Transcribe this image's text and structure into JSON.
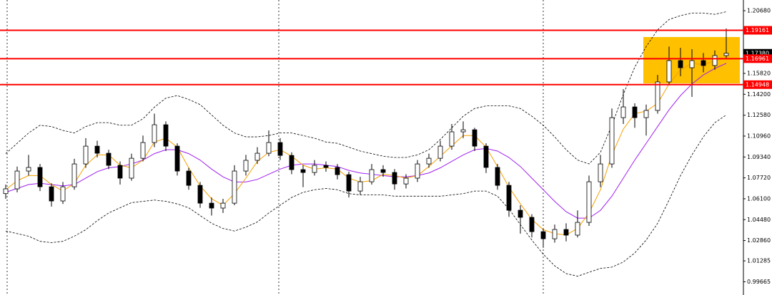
{
  "chart_data": {
    "type": "candlestick",
    "ylim": [
      0.9864,
      1.2151
    ],
    "yticks": [
      {
        "value": 1.2068,
        "label": "1.20680"
      },
      {
        "value": 1.1582,
        "label": "1.15820"
      },
      {
        "value": 1.142,
        "label": "1.14200"
      },
      {
        "value": 1.1258,
        "label": "1.12580"
      },
      {
        "value": 1.1096,
        "label": "1.10960"
      },
      {
        "value": 1.0934,
        "label": "1.09340"
      },
      {
        "value": 1.0772,
        "label": "1.07720"
      },
      {
        "value": 1.061,
        "label": "1.06100"
      },
      {
        "value": 1.0448,
        "label": "1.04480"
      },
      {
        "value": 1.0286,
        "label": "1.02860"
      },
      1.01285,
      0.99665
    ],
    "open": [
      1.065,
      1.0687,
      1.0825,
      1.0853,
      1.0703,
      1.0593,
      1.0703,
      1.088,
      1.1018,
      1.0963,
      1.0869,
      1.077,
      1.0924,
      1.1046,
      1.1184,
      1.1018,
      1.0825,
      1.0714,
      1.0576,
      1.0538,
      1.0576,
      1.0825,
      1.0908,
      1.0963,
      1.1046,
      1.0946,
      1.0836,
      1.0814,
      1.0869,
      1.0853,
      1.0797,
      1.067,
      1.0742,
      1.0836,
      1.0814,
      1.0725,
      1.077,
      1.088,
      1.0924,
      1.1018,
      1.1129,
      1.1145,
      1.1018,
      1.0853,
      1.0714,
      1.0521,
      1.0466,
      1.0355,
      1.03,
      1.0372,
      1.0328,
      1.0427,
      1.0742,
      1.088,
      1.1239,
      1.1322,
      1.1239,
      1.1295,
      1.1516,
      1.1681,
      1.1626,
      1.1681,
      1.1643,
      1.172
    ],
    "high": [
      1.072,
      1.086,
      1.095,
      1.088,
      1.073,
      1.074,
      1.092,
      1.108,
      1.106,
      1.099,
      1.09,
      1.096,
      1.11,
      1.127,
      1.121,
      1.104,
      1.085,
      1.074,
      1.062,
      1.061,
      1.087,
      1.095,
      1.101,
      1.114,
      1.108,
      1.097,
      1.087,
      1.091,
      1.09,
      1.088,
      1.082,
      1.078,
      1.088,
      1.087,
      1.084,
      1.08,
      1.091,
      1.096,
      1.106,
      1.119,
      1.121,
      1.116,
      1.104,
      1.088,
      1.074,
      1.056,
      1.049,
      1.038,
      1.041,
      1.042,
      1.052,
      1.079,
      1.095,
      1.131,
      1.146,
      1.135,
      1.134,
      1.157,
      1.179,
      1.178,
      1.177,
      1.174,
      1.176,
      1.193
    ],
    "low": [
      1.061,
      1.066,
      1.079,
      1.067,
      1.055,
      1.057,
      1.068,
      1.085,
      1.093,
      1.084,
      1.072,
      1.075,
      1.09,
      1.101,
      1.098,
      1.079,
      1.068,
      1.054,
      1.048,
      1.05,
      1.056,
      1.079,
      1.088,
      1.094,
      1.091,
      1.08,
      1.07,
      1.079,
      1.082,
      1.076,
      1.062,
      1.064,
      1.072,
      1.078,
      1.068,
      1.069,
      1.074,
      1.085,
      1.09,
      1.099,
      1.108,
      1.098,
      1.081,
      1.068,
      1.047,
      1.034,
      1.031,
      1.023,
      1.027,
      1.028,
      1.031,
      1.04,
      1.07,
      1.085,
      1.119,
      1.116,
      1.11,
      1.127,
      1.149,
      1.156,
      1.14,
      1.159,
      1.161,
      1.17
    ],
    "close": [
      1.0687,
      1.0825,
      1.0853,
      1.0703,
      1.0593,
      1.0703,
      1.088,
      1.1018,
      1.0963,
      1.0869,
      1.077,
      1.0924,
      1.1046,
      1.1184,
      1.1018,
      1.0825,
      1.0714,
      1.0576,
      1.0538,
      1.0576,
      1.0825,
      1.0908,
      1.0963,
      1.1046,
      1.0946,
      1.0836,
      1.0814,
      1.0869,
      1.0853,
      1.0797,
      1.067,
      1.0742,
      1.0836,
      1.0814,
      1.0725,
      1.077,
      1.088,
      1.0924,
      1.1018,
      1.1129,
      1.1145,
      1.1018,
      1.0853,
      1.0714,
      1.0521,
      1.0466,
      1.0355,
      1.03,
      1.0372,
      1.0328,
      1.0427,
      1.0742,
      1.088,
      1.1239,
      1.1322,
      1.1239,
      1.1295,
      1.1516,
      1.1681,
      1.1626,
      1.1681,
      1.1643,
      1.172,
      1.1738
    ],
    "series": [
      {
        "color": "#000000",
        "dashed": true,
        "values": [
          1.096,
          1.104,
          1.112,
          1.118,
          1.117,
          1.114,
          1.112,
          1.117,
          1.12,
          1.12,
          1.118,
          1.118,
          1.123,
          1.132,
          1.139,
          1.141,
          1.138,
          1.134,
          1.126,
          1.118,
          1.112,
          1.109,
          1.109,
          1.11,
          1.112,
          1.112,
          1.11,
          1.108,
          1.105,
          1.104,
          1.101,
          1.098,
          1.096,
          1.094,
          1.093,
          1.093,
          1.095,
          1.099,
          1.107,
          1.116,
          1.125,
          1.131,
          1.133,
          1.133,
          1.133,
          1.131,
          1.125,
          1.118,
          1.109,
          1.099,
          1.091,
          1.088,
          1.097,
          1.118,
          1.142,
          1.163,
          1.179,
          1.192,
          1.2,
          1.203,
          1.205,
          1.205,
          1.204,
          1.206
        ]
      },
      {
        "color": "#000000",
        "dashed": true,
        "values": [
          1.036,
          1.034,
          1.032,
          1.028,
          1.027,
          1.028,
          1.032,
          1.037,
          1.044,
          1.05,
          1.054,
          1.058,
          1.059,
          1.06,
          1.059,
          1.057,
          1.054,
          1.048,
          1.042,
          1.038,
          1.036,
          1.039,
          1.043,
          1.05,
          1.056,
          1.062,
          1.066,
          1.068,
          1.069,
          1.068,
          1.065,
          1.064,
          1.064,
          1.064,
          1.063,
          1.063,
          1.063,
          1.063,
          1.063,
          1.064,
          1.065,
          1.067,
          1.067,
          1.063,
          1.053,
          1.041,
          1.029,
          1.018,
          1.009,
          1.003,
          1.001,
          1.004,
          1.007,
          1.008,
          1.012,
          1.019,
          1.029,
          1.042,
          1.06,
          1.079,
          1.095,
          1.109,
          1.12,
          1.126
        ]
      },
      {
        "color": "#a020f0",
        "values": [
          1.066,
          1.069,
          1.072,
          1.073,
          1.072,
          1.071,
          1.072,
          1.077,
          1.082,
          1.085,
          1.086,
          1.088,
          1.091,
          1.096,
          1.099,
          1.099,
          1.096,
          1.091,
          1.084,
          1.078,
          1.074,
          1.074,
          1.076,
          1.08,
          1.084,
          1.087,
          1.088,
          1.088,
          1.087,
          1.086,
          1.083,
          1.081,
          1.08,
          1.079,
          1.078,
          1.078,
          1.079,
          1.081,
          1.085,
          1.09,
          1.095,
          1.099,
          1.1,
          1.098,
          1.093,
          1.086,
          1.077,
          1.068,
          1.059,
          1.051,
          1.046,
          1.046,
          1.052,
          1.063,
          1.077,
          1.091,
          1.104,
          1.117,
          1.13,
          1.141,
          1.15,
          1.157,
          1.162,
          1.166
        ]
      },
      {
        "color": "#f4a000",
        "values": [
          1.068,
          1.075,
          1.079,
          1.079,
          1.072,
          1.067,
          1.073,
          1.087,
          1.095,
          1.095,
          1.087,
          1.085,
          1.091,
          1.105,
          1.108,
          1.101,
          1.085,
          1.071,
          1.061,
          1.056,
          1.065,
          1.077,
          1.09,
          1.097,
          1.099,
          1.094,
          1.087,
          1.084,
          1.085,
          1.084,
          1.077,
          1.074,
          1.075,
          1.08,
          1.079,
          1.077,
          1.079,
          1.086,
          1.094,
          1.102,
          1.11,
          1.11,
          1.101,
          1.086,
          1.07,
          1.057,
          1.045,
          1.037,
          1.034,
          1.033,
          1.038,
          1.05,
          1.068,
          1.095,
          1.115,
          1.127,
          1.129,
          1.135,
          1.15,
          1.161,
          1.166,
          1.165,
          1.168,
          1.17
        ]
      }
    ],
    "zone": {
      "from": 56,
      "to": 63,
      "low": 1.1504,
      "high": 1.1864,
      "color": "#ffc000"
    },
    "levels": [
      1.19161,
      1.16961,
      1.14948
    ],
    "level_color": "#ff0000",
    "last_price": {
      "value": 1.1738,
      "label": "1.17380"
    }
  }
}
